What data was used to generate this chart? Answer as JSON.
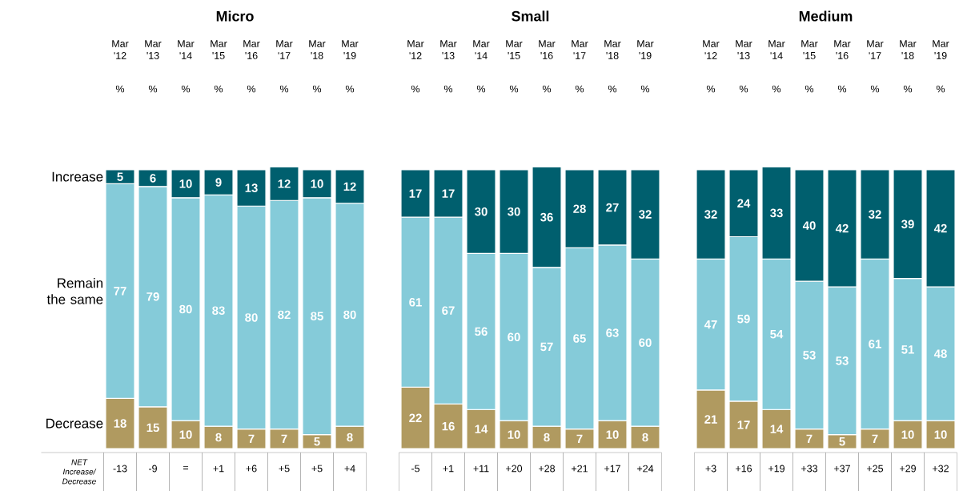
{
  "chart_data": [
    {
      "type": "bar",
      "title": "Micro",
      "stacked": true,
      "data_labels": true,
      "categories": [
        "Mar '12",
        "Mar '13",
        "Mar '14",
        "Mar '15",
        "Mar '16",
        "Mar '17",
        "Mar '18",
        "Mar '19"
      ],
      "series": [
        {
          "name": "Decrease",
          "color": "#b09a60",
          "values": [
            18,
            15,
            10,
            8,
            7,
            7,
            5,
            8
          ]
        },
        {
          "name": "Remain the same",
          "color": "#85cbd9",
          "values": [
            77,
            79,
            80,
            83,
            80,
            82,
            85,
            80
          ]
        },
        {
          "name": "Increase",
          "color": "#005f6e",
          "values": [
            5,
            6,
            10,
            9,
            13,
            12,
            10,
            12
          ]
        }
      ],
      "annotations": [
        "%",
        "NET Increase/ Decrease",
        "-13",
        "-9",
        "=",
        "+1",
        "+6",
        "+5",
        "+5",
        "+4"
      ]
    },
    {
      "type": "bar",
      "title": "Small",
      "stacked": true,
      "data_labels": true,
      "categories": [
        "Mar '12",
        "Mar '13",
        "Mar '14",
        "Mar '15",
        "Mar '16",
        "Mar '17",
        "Mar '18",
        "Mar '19"
      ],
      "series": [
        {
          "color": "#b09a60",
          "values": [
            22,
            16,
            14,
            10,
            8,
            7,
            10,
            8
          ]
        },
        {
          "color": "#85cbd9",
          "values": [
            61,
            67,
            56,
            60,
            57,
            65,
            63,
            60
          ]
        },
        {
          "color": "#005f6e",
          "values": [
            17,
            17,
            30,
            30,
            36,
            28,
            27,
            32
          ]
        }
      ],
      "annotations": [
        "%",
        "-5",
        "+1",
        "+11",
        "+20",
        "+28",
        "+21",
        "+17",
        "+24"
      ]
    },
    {
      "type": "bar",
      "title": "Medium",
      "stacked": true,
      "data_labels": true,
      "categories": [
        "Mar '12",
        "Mar '13",
        "Mar '14",
        "Mar '15",
        "Mar '16",
        "Mar '17",
        "Mar '18",
        "Mar '19"
      ],
      "series": [
        {
          "color": "#b09a60",
          "values": [
            21,
            17,
            14,
            7,
            5,
            7,
            10,
            10
          ]
        },
        {
          "color": "#85cbd9",
          "values": [
            47,
            59,
            54,
            53,
            53,
            61,
            51,
            48
          ]
        },
        {
          "color": "#005f6e",
          "values": [
            32,
            24,
            33,
            40,
            42,
            32,
            39,
            42
          ]
        }
      ],
      "annotations": [
        "%",
        "+3",
        "+16",
        "+19",
        "+33",
        "+37",
        "+25",
        "+29",
        "+32"
      ]
    }
  ]
}
